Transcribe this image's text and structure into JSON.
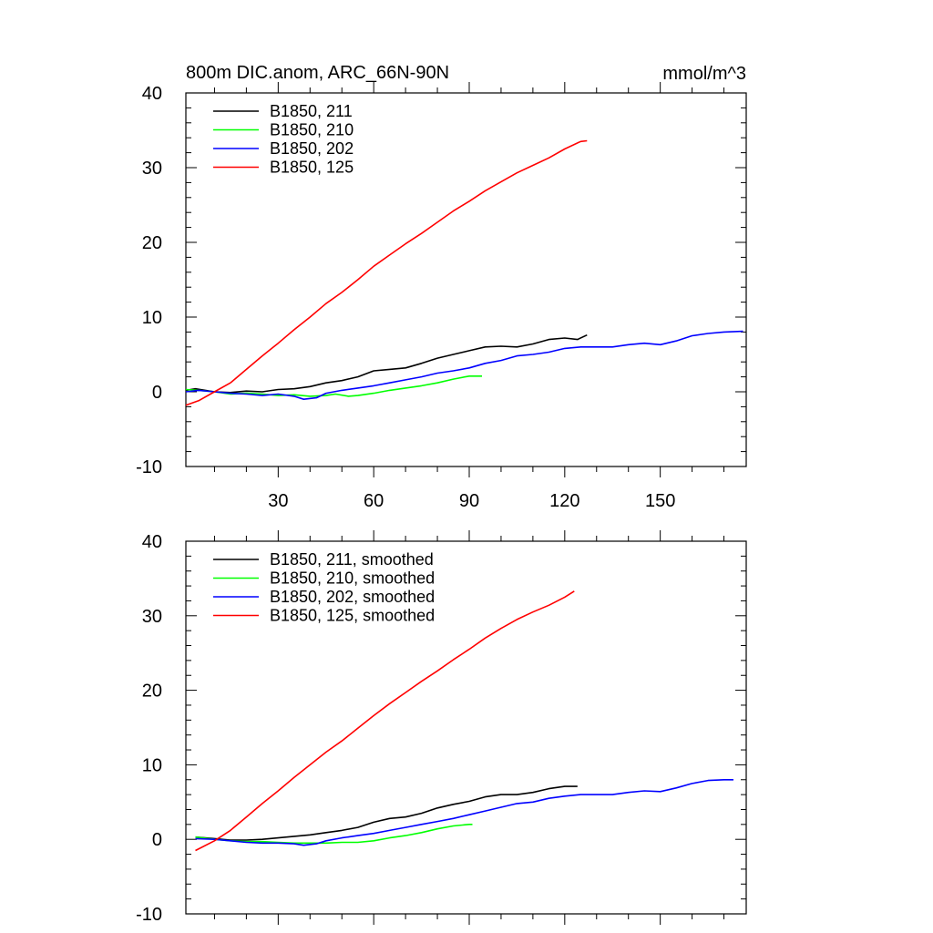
{
  "chart_data": [
    {
      "type": "line",
      "title": "800m DIC.anom, ARC_66N-90N",
      "units": "mmol/m^3",
      "xlim": [
        1,
        177
      ],
      "ylim": [
        -10,
        40
      ],
      "xticks": [
        30,
        60,
        90,
        120,
        150
      ],
      "xtick_labels": [
        "30",
        "60",
        "90",
        "120",
        "150"
      ],
      "yticks": [
        -10,
        0,
        10,
        20,
        30,
        40
      ],
      "ytick_labels": [
        "-10",
        "0",
        "10",
        "20",
        "30",
        "40"
      ],
      "legend_position": "top-left",
      "series": [
        {
          "name": "B1850, 211",
          "color": "#000000",
          "points": [
            [
              1,
              0.2
            ],
            [
              4,
              0.4
            ],
            [
              10,
              0.0
            ],
            [
              15,
              -0.1
            ],
            [
              20,
              0.1
            ],
            [
              25,
              0.0
            ],
            [
              30,
              0.3
            ],
            [
              35,
              0.4
            ],
            [
              40,
              0.7
            ],
            [
              45,
              1.2
            ],
            [
              50,
              1.5
            ],
            [
              55,
              2.0
            ],
            [
              60,
              2.8
            ],
            [
              65,
              3.0
            ],
            [
              70,
              3.2
            ],
            [
              75,
              3.8
            ],
            [
              80,
              4.5
            ],
            [
              85,
              5.0
            ],
            [
              90,
              5.5
            ],
            [
              95,
              6.0
            ],
            [
              100,
              6.1
            ],
            [
              105,
              6.0
            ],
            [
              110,
              6.4
            ],
            [
              115,
              7.0
            ],
            [
              120,
              7.2
            ],
            [
              124,
              7.0
            ],
            [
              127,
              7.6
            ]
          ]
        },
        {
          "name": "B1850, 210",
          "color": "#00ff00",
          "points": [
            [
              1,
              0.3
            ],
            [
              5,
              0.2
            ],
            [
              10,
              0.0
            ],
            [
              15,
              -0.3
            ],
            [
              20,
              -0.2
            ],
            [
              25,
              -0.3
            ],
            [
              30,
              -0.5
            ],
            [
              35,
              -0.4
            ],
            [
              40,
              -0.6
            ],
            [
              45,
              -0.5
            ],
            [
              48,
              -0.3
            ],
            [
              52,
              -0.6
            ],
            [
              55,
              -0.5
            ],
            [
              60,
              -0.2
            ],
            [
              65,
              0.2
            ],
            [
              70,
              0.5
            ],
            [
              75,
              0.8
            ],
            [
              80,
              1.2
            ],
            [
              85,
              1.7
            ],
            [
              90,
              2.1
            ],
            [
              94,
              2.1
            ]
          ]
        },
        {
          "name": "B1850, 202",
          "color": "#0000ff",
          "points": [
            [
              1,
              0.0
            ],
            [
              5,
              0.2
            ],
            [
              10,
              0.0
            ],
            [
              15,
              -0.2
            ],
            [
              20,
              -0.3
            ],
            [
              25,
              -0.5
            ],
            [
              30,
              -0.3
            ],
            [
              35,
              -0.6
            ],
            [
              38,
              -1.0
            ],
            [
              42,
              -0.8
            ],
            [
              45,
              -0.2
            ],
            [
              50,
              0.2
            ],
            [
              55,
              0.5
            ],
            [
              60,
              0.8
            ],
            [
              65,
              1.2
            ],
            [
              70,
              1.6
            ],
            [
              75,
              2.0
            ],
            [
              80,
              2.5
            ],
            [
              85,
              2.8
            ],
            [
              90,
              3.2
            ],
            [
              95,
              3.8
            ],
            [
              100,
              4.2
            ],
            [
              105,
              4.8
            ],
            [
              110,
              5.0
            ],
            [
              115,
              5.3
            ],
            [
              120,
              5.8
            ],
            [
              125,
              6.0
            ],
            [
              130,
              6.0
            ],
            [
              135,
              6.0
            ],
            [
              140,
              6.3
            ],
            [
              145,
              6.5
            ],
            [
              150,
              6.3
            ],
            [
              155,
              6.8
            ],
            [
              160,
              7.5
            ],
            [
              165,
              7.8
            ],
            [
              170,
              8.0
            ],
            [
              176,
              8.1
            ]
          ]
        },
        {
          "name": "B1850, 125",
          "color": "#ff0000",
          "points": [
            [
              1,
              -1.8
            ],
            [
              5,
              -1.2
            ],
            [
              10,
              0.0
            ],
            [
              15,
              1.2
            ],
            [
              20,
              3.0
            ],
            [
              25,
              4.8
            ],
            [
              30,
              6.5
            ],
            [
              35,
              8.3
            ],
            [
              40,
              10.0
            ],
            [
              45,
              11.8
            ],
            [
              50,
              13.3
            ],
            [
              55,
              15.0
            ],
            [
              60,
              16.8
            ],
            [
              65,
              18.3
            ],
            [
              70,
              19.8
            ],
            [
              75,
              21.2
            ],
            [
              80,
              22.7
            ],
            [
              85,
              24.2
            ],
            [
              90,
              25.5
            ],
            [
              95,
              26.9
            ],
            [
              100,
              28.1
            ],
            [
              105,
              29.3
            ],
            [
              110,
              30.3
            ],
            [
              115,
              31.3
            ],
            [
              120,
              32.5
            ],
            [
              125,
              33.5
            ],
            [
              127,
              33.6
            ]
          ]
        }
      ]
    },
    {
      "type": "line",
      "title": "",
      "units": "",
      "xlim": [
        1,
        177
      ],
      "ylim": [
        -10,
        40
      ],
      "xticks": [
        30,
        60,
        90,
        120,
        150
      ],
      "xtick_labels": [],
      "yticks": [
        -10,
        0,
        10,
        20,
        30,
        40
      ],
      "ytick_labels": [
        "-10",
        "0",
        "10",
        "20",
        "30",
        "40"
      ],
      "legend_position": "top-left",
      "series": [
        {
          "name": "B1850, 211, smoothed",
          "color": "#000000",
          "points": [
            [
              4,
              0.3
            ],
            [
              10,
              0.1
            ],
            [
              15,
              -0.1
            ],
            [
              20,
              -0.1
            ],
            [
              25,
              0.0
            ],
            [
              30,
              0.2
            ],
            [
              35,
              0.4
            ],
            [
              40,
              0.6
            ],
            [
              45,
              0.9
            ],
            [
              50,
              1.2
            ],
            [
              55,
              1.6
            ],
            [
              60,
              2.3
            ],
            [
              65,
              2.8
            ],
            [
              70,
              3.0
            ],
            [
              75,
              3.5
            ],
            [
              80,
              4.2
            ],
            [
              85,
              4.7
            ],
            [
              90,
              5.1
            ],
            [
              95,
              5.7
            ],
            [
              100,
              6.0
            ],
            [
              105,
              6.0
            ],
            [
              110,
              6.3
            ],
            [
              115,
              6.8
            ],
            [
              120,
              7.1
            ],
            [
              124,
              7.1
            ]
          ]
        },
        {
          "name": "B1850, 210, smoothed",
          "color": "#00ff00",
          "points": [
            [
              4,
              0.3
            ],
            [
              10,
              0.0
            ],
            [
              15,
              -0.2
            ],
            [
              20,
              -0.3
            ],
            [
              25,
              -0.3
            ],
            [
              30,
              -0.4
            ],
            [
              35,
              -0.5
            ],
            [
              40,
              -0.5
            ],
            [
              45,
              -0.5
            ],
            [
              50,
              -0.4
            ],
            [
              55,
              -0.4
            ],
            [
              60,
              -0.2
            ],
            [
              65,
              0.2
            ],
            [
              70,
              0.5
            ],
            [
              75,
              0.9
            ],
            [
              80,
              1.4
            ],
            [
              85,
              1.8
            ],
            [
              90,
              2.0
            ],
            [
              91,
              2.0
            ]
          ]
        },
        {
          "name": "B1850, 202, smoothed",
          "color": "#0000ff",
          "points": [
            [
              4,
              0.1
            ],
            [
              10,
              0.0
            ],
            [
              15,
              -0.2
            ],
            [
              20,
              -0.4
            ],
            [
              25,
              -0.5
            ],
            [
              30,
              -0.5
            ],
            [
              35,
              -0.6
            ],
            [
              38,
              -0.8
            ],
            [
              42,
              -0.6
            ],
            [
              45,
              -0.2
            ],
            [
              50,
              0.2
            ],
            [
              55,
              0.5
            ],
            [
              60,
              0.8
            ],
            [
              65,
              1.2
            ],
            [
              70,
              1.6
            ],
            [
              75,
              2.0
            ],
            [
              80,
              2.4
            ],
            [
              85,
              2.8
            ],
            [
              90,
              3.3
            ],
            [
              95,
              3.8
            ],
            [
              100,
              4.3
            ],
            [
              105,
              4.8
            ],
            [
              110,
              5.0
            ],
            [
              115,
              5.5
            ],
            [
              120,
              5.8
            ],
            [
              125,
              6.0
            ],
            [
              130,
              6.0
            ],
            [
              135,
              6.0
            ],
            [
              140,
              6.3
            ],
            [
              145,
              6.5
            ],
            [
              150,
              6.4
            ],
            [
              155,
              6.9
            ],
            [
              160,
              7.5
            ],
            [
              165,
              7.9
            ],
            [
              170,
              8.0
            ],
            [
              173,
              8.0
            ]
          ]
        },
        {
          "name": "B1850, 125, smoothed",
          "color": "#ff0000",
          "points": [
            [
              4,
              -1.5
            ],
            [
              10,
              -0.2
            ],
            [
              15,
              1.2
            ],
            [
              20,
              3.0
            ],
            [
              25,
              4.8
            ],
            [
              30,
              6.5
            ],
            [
              35,
              8.3
            ],
            [
              40,
              10.0
            ],
            [
              45,
              11.7
            ],
            [
              50,
              13.2
            ],
            [
              55,
              14.9
            ],
            [
              60,
              16.6
            ],
            [
              65,
              18.2
            ],
            [
              70,
              19.7
            ],
            [
              75,
              21.2
            ],
            [
              80,
              22.6
            ],
            [
              85,
              24.1
            ],
            [
              90,
              25.5
            ],
            [
              95,
              27.0
            ],
            [
              100,
              28.3
            ],
            [
              105,
              29.5
            ],
            [
              110,
              30.5
            ],
            [
              115,
              31.4
            ],
            [
              120,
              32.5
            ],
            [
              123,
              33.3
            ]
          ]
        }
      ]
    }
  ]
}
